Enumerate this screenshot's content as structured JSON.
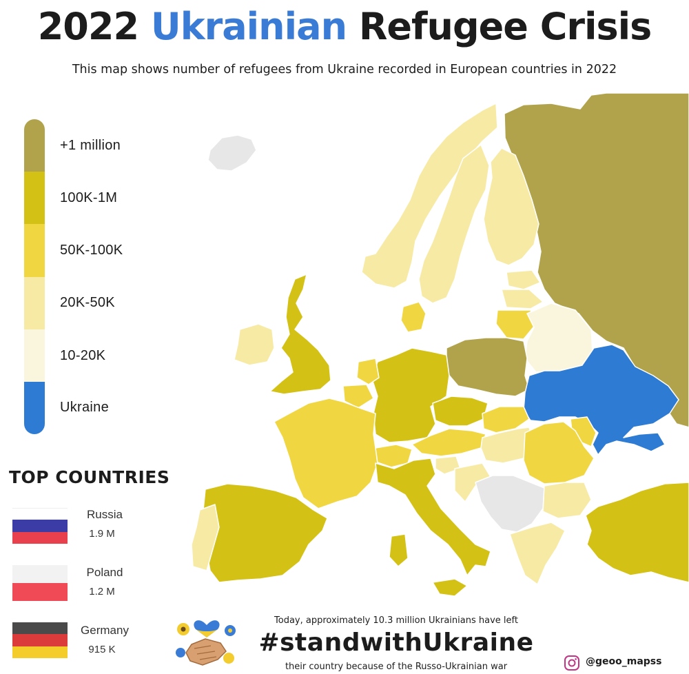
{
  "title": {
    "year": "2022",
    "country": "Ukrainian",
    "rest": "Refugee Crisis"
  },
  "subtitle": "This map shows number of refugees from Ukraine recorded in European countries in 2022",
  "colors": {
    "c1m": "#b1a34b",
    "c100k": "#d4c115",
    "c50k": "#f0d742",
    "c20k": "#f7eaa5",
    "c10k": "#faf6de",
    "ukraine": "#2e7bd4",
    "nodata": "#e7e7e7"
  },
  "legend": [
    {
      "label": "+1 million",
      "color": "#b1a34b"
    },
    {
      "label": "100K-1M",
      "color": "#d4c115"
    },
    {
      "label": "50K-100K",
      "color": "#f0d742"
    },
    {
      "label": "20K-50K",
      "color": "#f7eaa5"
    },
    {
      "label": "10-20K",
      "color": "#faf6de"
    },
    {
      "label": "Ukraine",
      "color": "#2e7bd4"
    }
  ],
  "top_countries": {
    "heading": "TOP COUNTRIES",
    "items": [
      {
        "name": "Russia",
        "value": "1.9 M",
        "flag_colors": [
          "#ffffff",
          "#3c3ca6",
          "#e9404d"
        ]
      },
      {
        "name": "Poland",
        "value": "1.2 M",
        "flag_colors": [
          "#f2f2f2",
          "#f04a57"
        ]
      },
      {
        "name": "Germany",
        "value": "915 K",
        "flag_colors": [
          "#4a4a4a",
          "#dc3b3b",
          "#f5cd2a"
        ]
      }
    ]
  },
  "footer": {
    "line1": "Today, approximately 10.3 million Ukrainians have left",
    "hashtag": "#standwithUkraine",
    "line2": "their country because of the Russo-Ukrainian war",
    "handle": "@geoo_mapss"
  }
}
